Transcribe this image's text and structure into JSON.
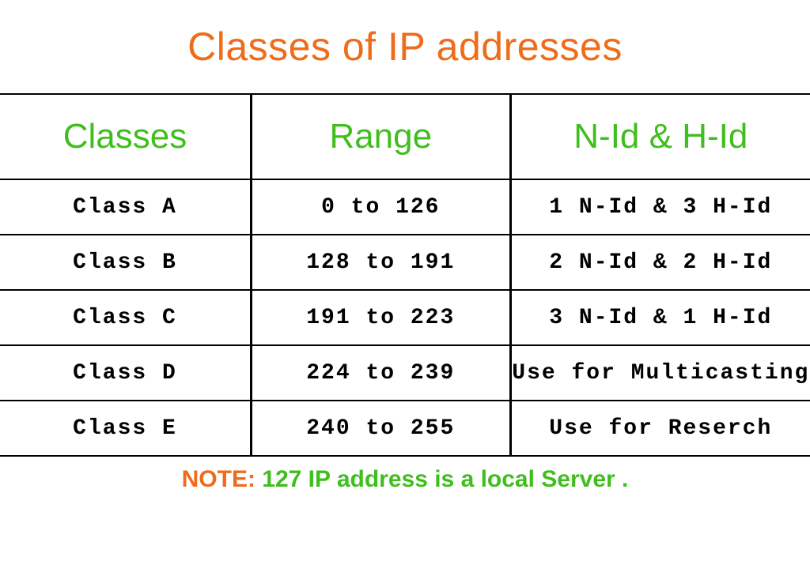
{
  "title": {
    "text": "Classes of IP addresses",
    "color": "#ee6c1a"
  },
  "table": {
    "type": "table",
    "header_color": "#3fbf1d",
    "header_fontsize": 44,
    "body_font": "monospace",
    "body_fontsize": 28,
    "border_color": "#000000",
    "columns": [
      {
        "label": "Classes",
        "width_pct": 31
      },
      {
        "label": "Range",
        "width_pct": 32
      },
      {
        "label": "N-Id & H-Id",
        "width_pct": 37
      }
    ],
    "rows": [
      {
        "class": "Class A",
        "range": "0 to 126",
        "nid_hid": "1 N-Id & 3 H-Id"
      },
      {
        "class": "Class B",
        "range": "128 to 191",
        "nid_hid": "2 N-Id & 2 H-Id"
      },
      {
        "class": "Class C",
        "range": "191 to 223",
        "nid_hid": "3 N-Id & 1 H-Id"
      },
      {
        "class": "Class D",
        "range": "224 to 239",
        "nid_hid": "Use for Multicasting"
      },
      {
        "class": "Class E",
        "range": "240 to 255",
        "nid_hid": "Use for Reserch"
      }
    ]
  },
  "note": {
    "label": "NOTE:",
    "label_color": "#ee6c1a",
    "text": " 127 IP address is a local Server .",
    "text_color": "#3fbf1d"
  }
}
